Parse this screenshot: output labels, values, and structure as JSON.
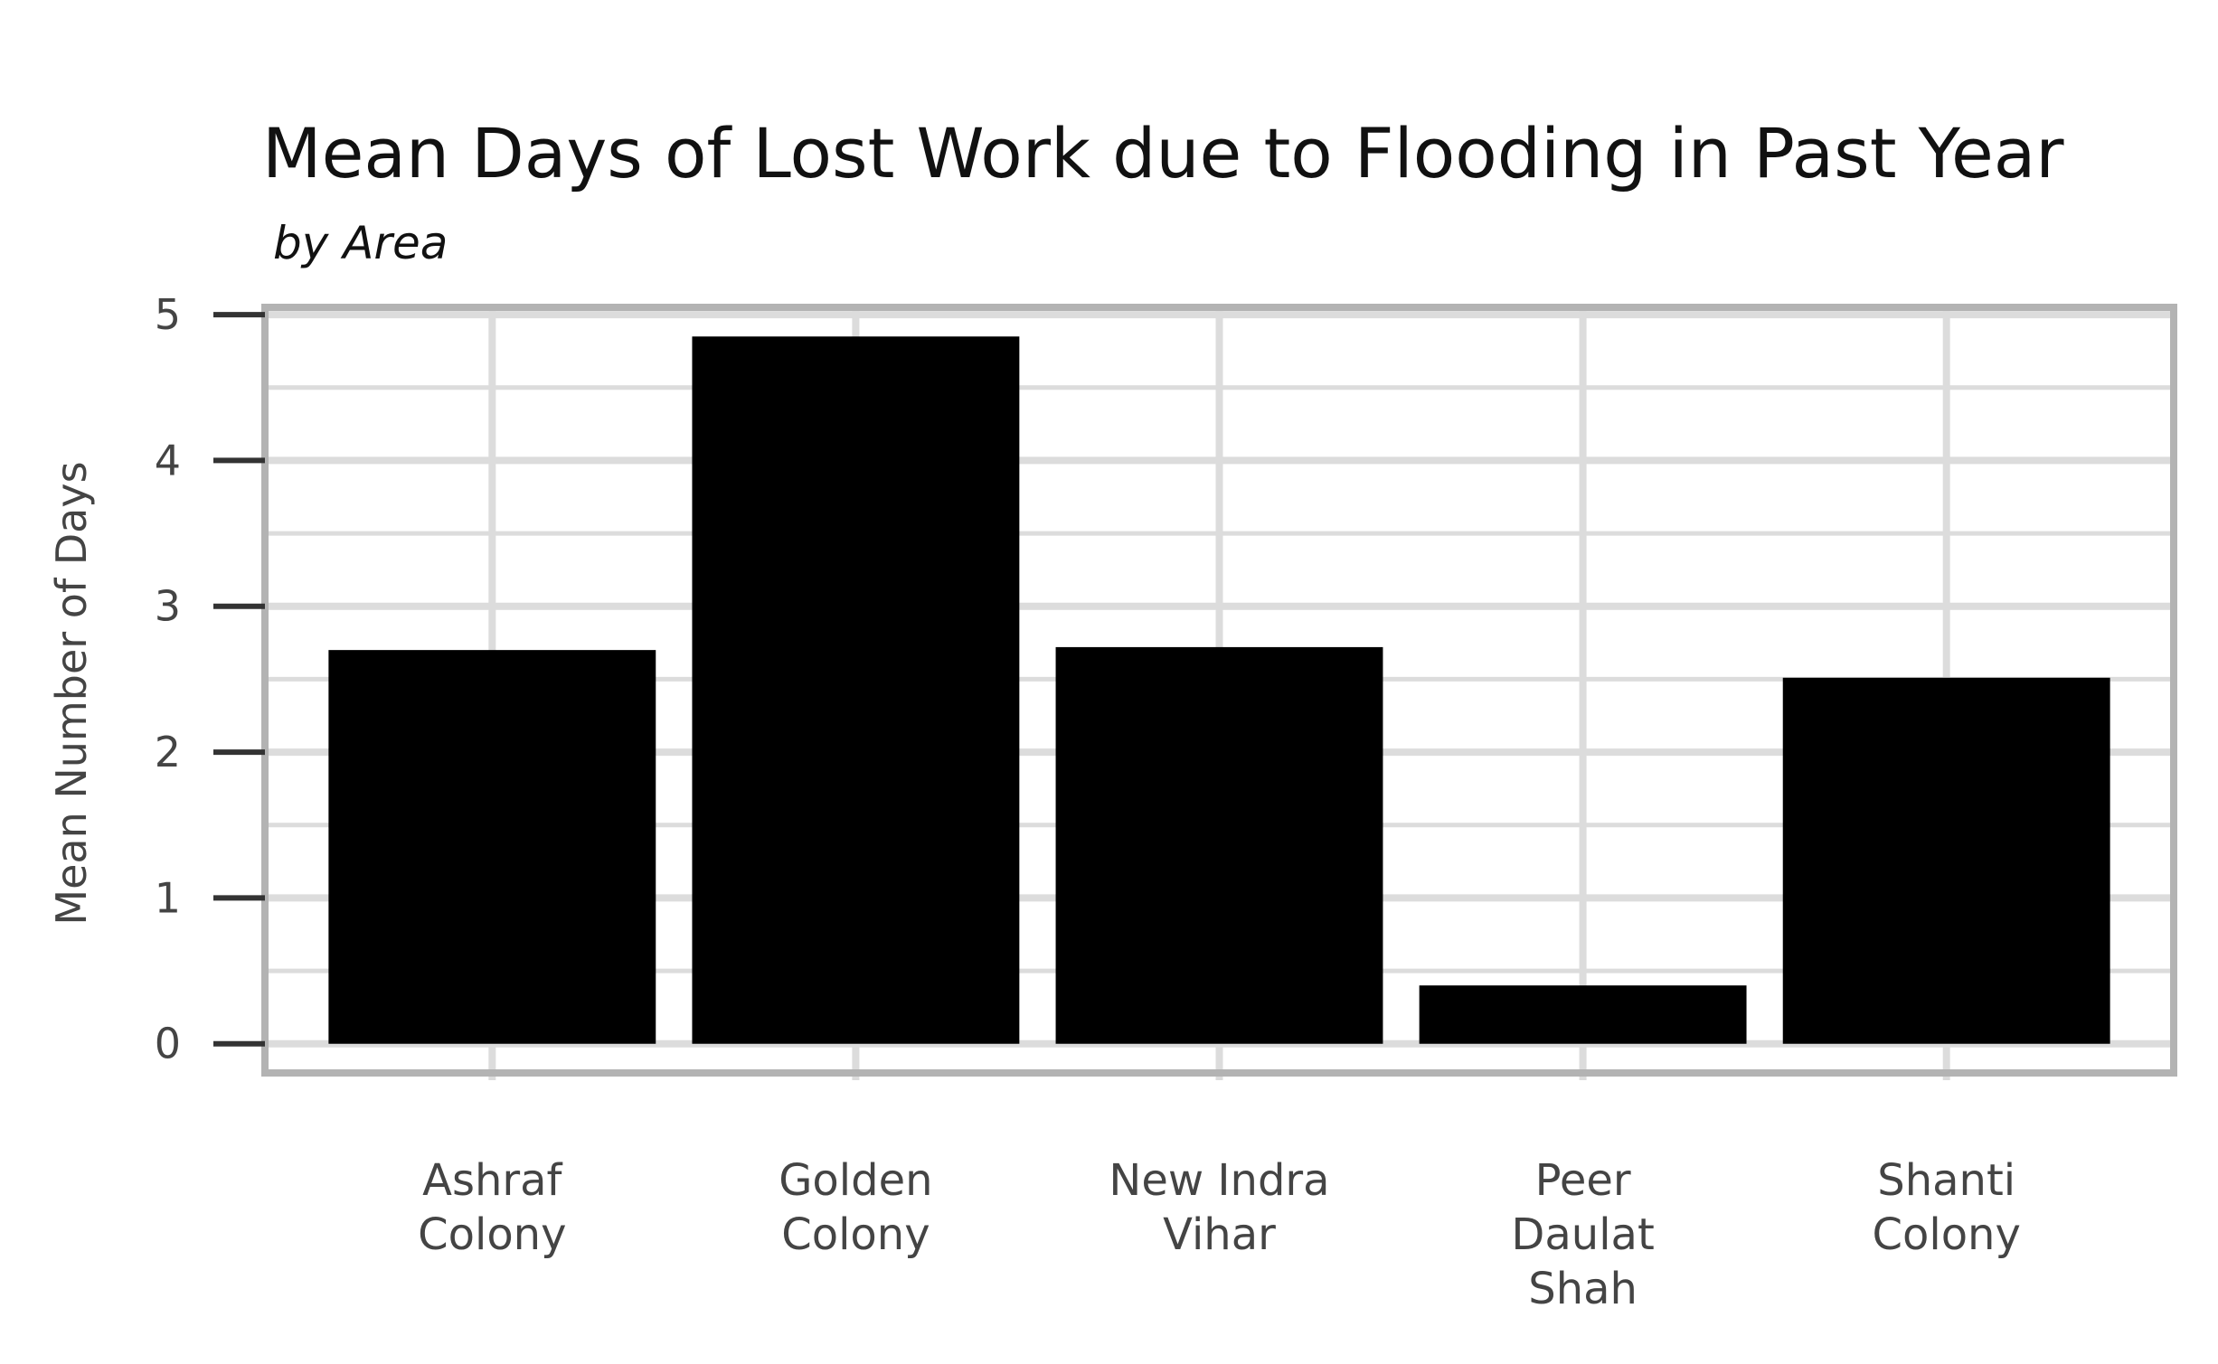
{
  "chart_data": {
    "type": "bar",
    "title": "Mean Days of Lost Work due to Flooding in Past Year",
    "subtitle": "by Area",
    "xlabel": "",
    "ylabel": "Mean Number of Days",
    "categories": [
      [
        "Ashraf",
        "Colony"
      ],
      [
        "Golden",
        "Colony"
      ],
      [
        "New Indra",
        "Vihar"
      ],
      [
        "Peer",
        "Daulat",
        "Shah"
      ],
      [
        "Shanti",
        "Colony"
      ]
    ],
    "values": [
      2.7,
      4.85,
      2.72,
      0.4,
      2.51
    ],
    "ylim": [
      -0.2,
      5.05
    ],
    "yticks": [
      0,
      1,
      2,
      3,
      4,
      5
    ],
    "grid": true,
    "legend": "none",
    "colors": {
      "bar": "#000000",
      "grid": "#dcdcdc",
      "panel_border": "#b3b3b3",
      "text": "#444444",
      "title": "#111111"
    }
  }
}
